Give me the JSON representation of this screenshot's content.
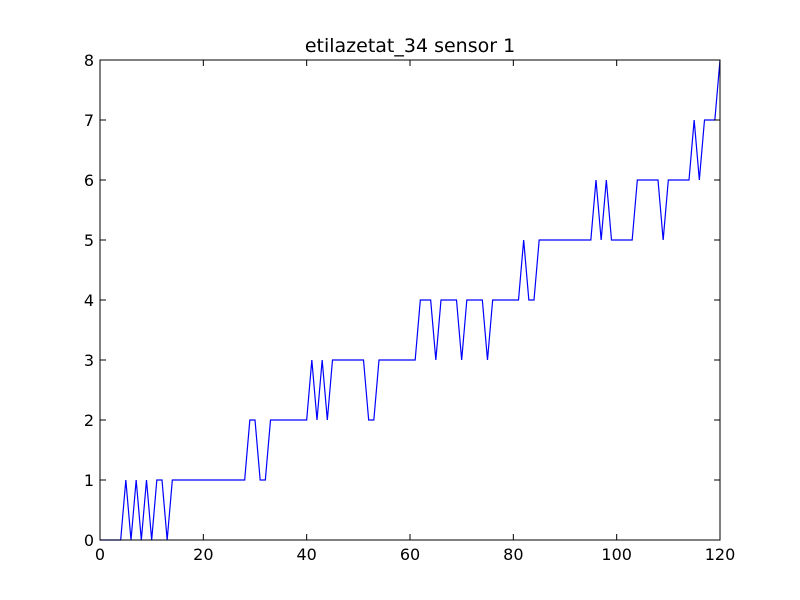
{
  "chart_data": {
    "type": "line",
    "title": "etilazetat_34 sensor 1",
    "xlabel": "",
    "ylabel": "",
    "xlim": [
      0,
      120
    ],
    "ylim": [
      0,
      8
    ],
    "x_ticks": [
      0,
      20,
      40,
      60,
      80,
      100,
      120
    ],
    "y_ticks": [
      0,
      1,
      2,
      3,
      4,
      5,
      6,
      7,
      8
    ],
    "grid": false,
    "legend": "none",
    "colors": {
      "line": "#0000ff",
      "axes": "#000000",
      "background": "#ffffff"
    },
    "series": [
      {
        "x": [
          0,
          1,
          2,
          3,
          4,
          5,
          6,
          7,
          8,
          9,
          10,
          11,
          12,
          13,
          14,
          15,
          16,
          17,
          18,
          19,
          20,
          21,
          22,
          23,
          24,
          25,
          26,
          27,
          28,
          29,
          30,
          31,
          32,
          33,
          34,
          35,
          36,
          37,
          38,
          39,
          40,
          41,
          42,
          43,
          44,
          45,
          46,
          47,
          48,
          49,
          50,
          51,
          52,
          53,
          54,
          55,
          56,
          57,
          58,
          59,
          60,
          61,
          62,
          63,
          64,
          65,
          66,
          67,
          68,
          69,
          70,
          71,
          72,
          73,
          74,
          75,
          76,
          77,
          78,
          79,
          80,
          81,
          82,
          83,
          84,
          85,
          86,
          87,
          88,
          89,
          90,
          91,
          92,
          93,
          94,
          95,
          96,
          97,
          98,
          99,
          100,
          101,
          102,
          103,
          104,
          105,
          106,
          107,
          108,
          109,
          110,
          111,
          112,
          113,
          114,
          115,
          116,
          117,
          118,
          119,
          120
        ],
        "values": [
          0,
          0,
          0,
          0,
          0,
          1,
          0,
          1,
          0,
          1,
          0,
          1,
          1,
          0,
          1,
          1,
          1,
          1,
          1,
          1,
          1,
          1,
          1,
          1,
          1,
          1,
          1,
          1,
          1,
          2,
          2,
          1,
          1,
          2,
          2,
          2,
          2,
          2,
          2,
          2,
          2,
          3,
          2,
          3,
          2,
          3,
          3,
          3,
          3,
          3,
          3,
          3,
          2,
          2,
          3,
          3,
          3,
          3,
          3,
          3,
          3,
          3,
          4,
          4,
          4,
          3,
          4,
          4,
          4,
          4,
          3,
          4,
          4,
          4,
          4,
          3,
          4,
          4,
          4,
          4,
          4,
          4,
          5,
          4,
          4,
          5,
          5,
          5,
          5,
          5,
          5,
          5,
          5,
          5,
          5,
          5,
          6,
          5,
          6,
          5,
          5,
          5,
          5,
          5,
          6,
          6,
          6,
          6,
          6,
          5,
          6,
          6,
          6,
          6,
          6,
          7,
          6,
          7,
          7,
          7,
          8
        ]
      }
    ]
  }
}
